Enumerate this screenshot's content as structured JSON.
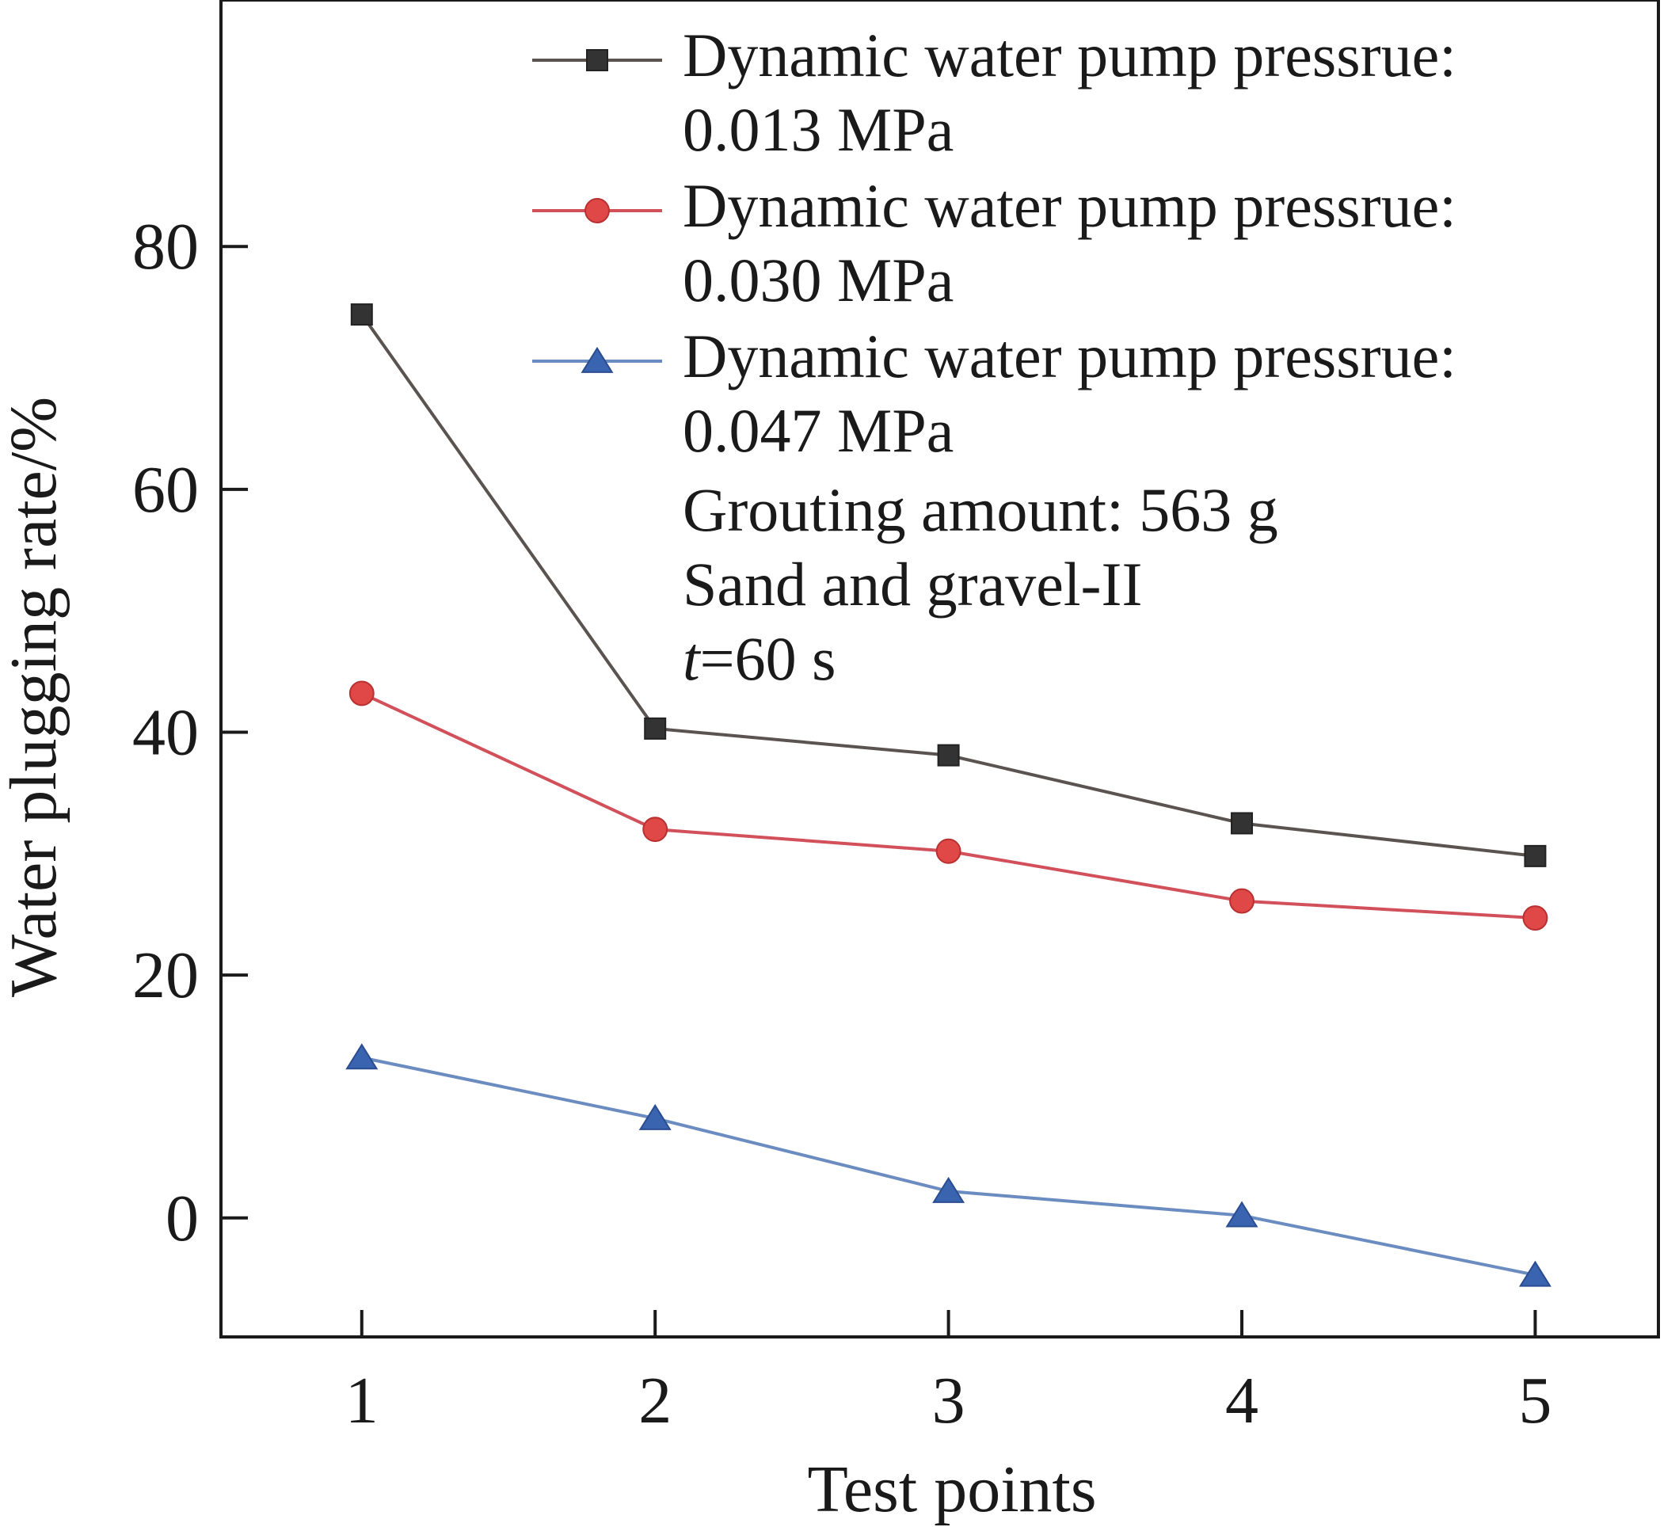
{
  "chart_data": {
    "type": "line",
    "xlabel": "Test points",
    "ylabel": "Water plugging rate/%",
    "categories": [
      1,
      2,
      3,
      4,
      5
    ],
    "x_tick_labels": [
      "1",
      "2",
      "3",
      "4",
      "5"
    ],
    "y_ticks": [
      0,
      20,
      40,
      60,
      80
    ],
    "y_tick_labels": [
      "0",
      "20",
      "40",
      "60",
      "80"
    ],
    "ylim": [
      -9.8,
      100.3
    ],
    "xlim": [
      0.52,
      5.42
    ],
    "grid": false,
    "legend_position": "top-right",
    "series": [
      {
        "name": "Dynamic water pump pressrue: 0.013 MPa",
        "legend_line1": "Dynamic water pump pressrue:",
        "legend_line2": "0.013 MPa",
        "marker": "square",
        "color": "#5a5350",
        "marker_color": "#333333",
        "values": [
          74.4,
          40.3,
          38.1,
          32.5,
          29.8
        ]
      },
      {
        "name": "Dynamic water pump pressrue: 0.030 MPa",
        "legend_line1": "Dynamic water pump pressrue:",
        "legend_line2": "0.030 MPa",
        "marker": "circle",
        "color": "#d2505a",
        "marker_color": "#e04848",
        "values": [
          43.2,
          32.0,
          30.2,
          26.1,
          24.7
        ]
      },
      {
        "name": "Dynamic water pump pressrue: 0.047 MPa",
        "legend_line1": "Dynamic water pump pressrue:",
        "legend_line2": "0.047 MPa",
        "marker": "triangle",
        "color": "#6a8cc0",
        "marker_color": "#3a64b0",
        "values": [
          13.2,
          8.2,
          2.2,
          0.2,
          -4.7
        ]
      }
    ],
    "annotations": {
      "grouting": "Grouting amount: 563 g",
      "material": "Sand and gravel-II",
      "time_var": "t",
      "time_value": "=60 s"
    }
  }
}
